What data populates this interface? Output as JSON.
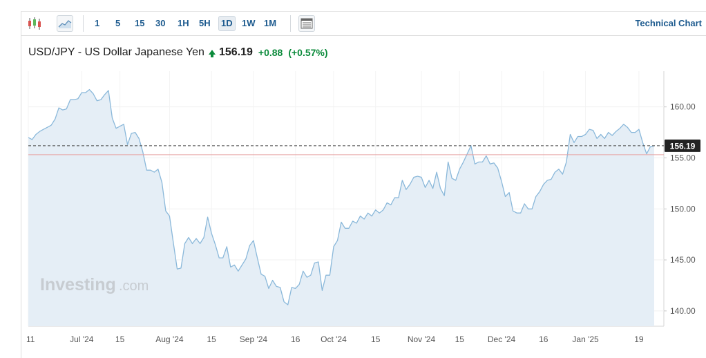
{
  "toolbar": {
    "timeframes": [
      "1",
      "5",
      "15",
      "30",
      "1H",
      "5H",
      "1D",
      "1W",
      "1M"
    ],
    "active_timeframe": "1D",
    "technical_chart_label": "Technical Chart"
  },
  "header": {
    "title": "USD/JPY - US Dollar Japanese Yen",
    "price": "156.19",
    "change": "+0.88",
    "change_pct": "(+0.57%)"
  },
  "watermark": {
    "brand": "Investing",
    "suffix": ".com"
  },
  "colors": {
    "line": "#8ab8da",
    "fill": "#e5eef6",
    "up": "#0a8a3a",
    "link": "#1c5a8e",
    "ref_line": "#e6a3a3"
  },
  "chart_data": {
    "type": "area",
    "ylim": [
      138.5,
      163.5
    ],
    "yticks": [
      {
        "label": "160.00",
        "value": 160
      },
      {
        "label": "155.00",
        "value": 155
      },
      {
        "label": "150.00",
        "value": 150
      },
      {
        "label": "145.00",
        "value": 145
      },
      {
        "label": "140.00",
        "value": 140
      }
    ],
    "xticks": [
      {
        "label": "11",
        "index": 0
      },
      {
        "label": "Jul '24",
        "index": 14
      },
      {
        "label": "15",
        "index": 24
      },
      {
        "label": "Aug '24",
        "index": 37
      },
      {
        "label": "15",
        "index": 48
      },
      {
        "label": "Sep '24",
        "index": 59
      },
      {
        "label": "16",
        "index": 70
      },
      {
        "label": "Oct '24",
        "index": 80
      },
      {
        "label": "15",
        "index": 91
      },
      {
        "label": "Nov '24",
        "index": 103
      },
      {
        "label": "15",
        "index": 113
      },
      {
        "label": "Dec '24",
        "index": 124
      },
      {
        "label": "16",
        "index": 135
      },
      {
        "label": "Jan '25",
        "index": 146
      },
      {
        "label": "19",
        "index": 160
      }
    ],
    "last_price": 156.19,
    "last_price_label": "156.19",
    "ref_level": 155.31,
    "values": [
      157.0,
      156.8,
      157.3,
      157.6,
      157.8,
      158.0,
      158.2,
      158.8,
      159.9,
      159.7,
      159.8,
      160.7,
      160.7,
      160.8,
      161.4,
      161.4,
      161.7,
      161.3,
      160.6,
      160.7,
      161.2,
      161.6,
      158.9,
      157.9,
      158.1,
      158.3,
      156.3,
      157.4,
      157.5,
      156.9,
      155.6,
      153.8,
      153.8,
      153.6,
      153.9,
      152.6,
      149.8,
      149.3,
      146.7,
      144.1,
      144.2,
      146.6,
      147.2,
      146.6,
      147.1,
      146.6,
      147.2,
      149.2,
      147.6,
      146.5,
      145.2,
      145.2,
      146.3,
      144.3,
      144.5,
      143.9,
      144.5,
      145.1,
      146.4,
      146.9,
      145.2,
      143.6,
      143.4,
      142.2,
      143.0,
      142.4,
      142.3,
      140.9,
      140.6,
      142.3,
      142.2,
      142.6,
      143.9,
      143.3,
      143.5,
      144.7,
      144.8,
      142.0,
      143.5,
      143.5,
      146.3,
      146.9,
      148.7,
      148.1,
      148.1,
      148.8,
      148.6,
      149.3,
      149.0,
      149.6,
      149.3,
      149.9,
      149.6,
      149.9,
      150.6,
      150.4,
      151.1,
      151.1,
      152.8,
      151.9,
      152.4,
      153.1,
      153.2,
      153.1,
      152.1,
      152.8,
      152.0,
      153.6,
      152.0,
      151.3,
      154.6,
      153.0,
      152.8,
      153.9,
      154.6,
      155.4,
      156.2,
      154.4,
      154.6,
      154.6,
      155.2,
      154.4,
      154.5,
      154.0,
      152.7,
      151.2,
      151.6,
      149.8,
      149.6,
      149.6,
      150.5,
      150.0,
      150.0,
      151.2,
      151.7,
      152.4,
      152.8,
      152.9,
      153.6,
      153.9,
      153.4,
      154.6,
      157.3,
      156.5,
      157.1,
      157.1,
      157.3,
      157.8,
      157.7,
      156.9,
      157.3,
      156.9,
      157.5,
      157.2,
      157.6,
      157.9,
      158.3,
      158.0,
      157.5,
      157.5,
      157.8,
      156.5,
      155.4,
      156.1,
      156.19
    ]
  }
}
